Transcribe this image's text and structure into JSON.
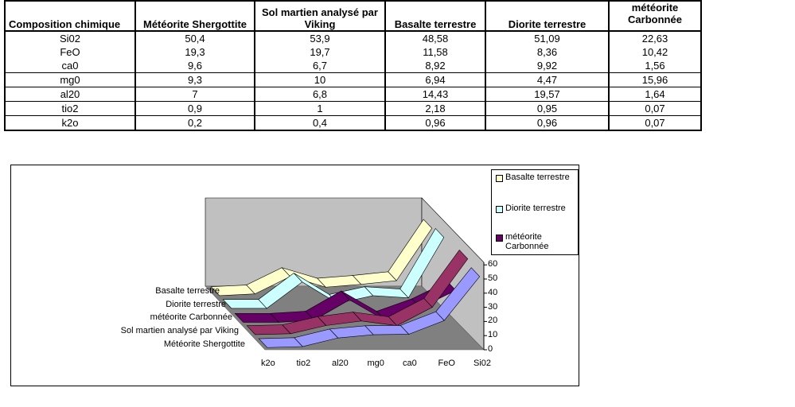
{
  "table": {
    "headers": [
      "Composition chimique",
      "Météorite Shergottite",
      "Sol martien analysé par Viking",
      "Basalte terrestre",
      "Diorite terrestre",
      "météorite Carbonnée"
    ],
    "rows": [
      [
        "Si02",
        "50,4",
        "53,9",
        "48,58",
        "51,09",
        "22,63"
      ],
      [
        "FeO",
        "19,3",
        "19,7",
        "11,58",
        "8,36",
        "10,42"
      ],
      [
        "ca0",
        "9,6",
        "6,7",
        "8,92",
        "9,92",
        "1,56"
      ],
      [
        "mg0",
        "9,3",
        "10",
        "6,94",
        "4,47",
        "15,96"
      ],
      [
        "al20",
        "7",
        "6,8",
        "14,43",
        "19,57",
        "1,64"
      ],
      [
        "tio2",
        "0,9",
        "1",
        "2,18",
        "0,95",
        "0,07"
      ],
      [
        "k2o",
        "0,2",
        "0,4",
        "0,96",
        "0,96",
        "0,07"
      ]
    ]
  },
  "chart_data": {
    "type": "3d-line",
    "categories": [
      "k2o",
      "tio2",
      "al20",
      "mg0",
      "ca0",
      "FeO",
      "Si02"
    ],
    "ylim": [
      0,
      60
    ],
    "yticks": [
      "0",
      "10",
      "20",
      "30",
      "40",
      "50",
      "60"
    ],
    "series": [
      {
        "name": "Météorite Shergottite",
        "color": "#9999FF",
        "values": [
          0.2,
          0.9,
          7,
          9.3,
          9.6,
          19.3,
          50.4
        ]
      },
      {
        "name": "Sol martien analysé par Viking",
        "color": "#993366",
        "values": [
          0.4,
          1,
          6.8,
          10,
          6.7,
          19.7,
          53.9
        ]
      },
      {
        "name": "météorite Carbonnée",
        "color": "#660066",
        "values": [
          0.07,
          0.07,
          1.64,
          15.96,
          1.56,
          10.42,
          22.63
        ]
      },
      {
        "name": "Diorite terrestre",
        "color": "#CCFFFF",
        "values": [
          0.96,
          0.95,
          19.57,
          4.47,
          9.92,
          8.36,
          51.09
        ]
      },
      {
        "name": "Basalte terrestre",
        "color": "#FFFFCC",
        "values": [
          0.96,
          2.18,
          14.43,
          6.94,
          8.92,
          11.58,
          48.58
        ]
      }
    ],
    "legend": [
      "Basalte terrestre",
      "Diorite terrestre",
      "météorite Carbonnée"
    ],
    "legend_placement": "top-right"
  }
}
